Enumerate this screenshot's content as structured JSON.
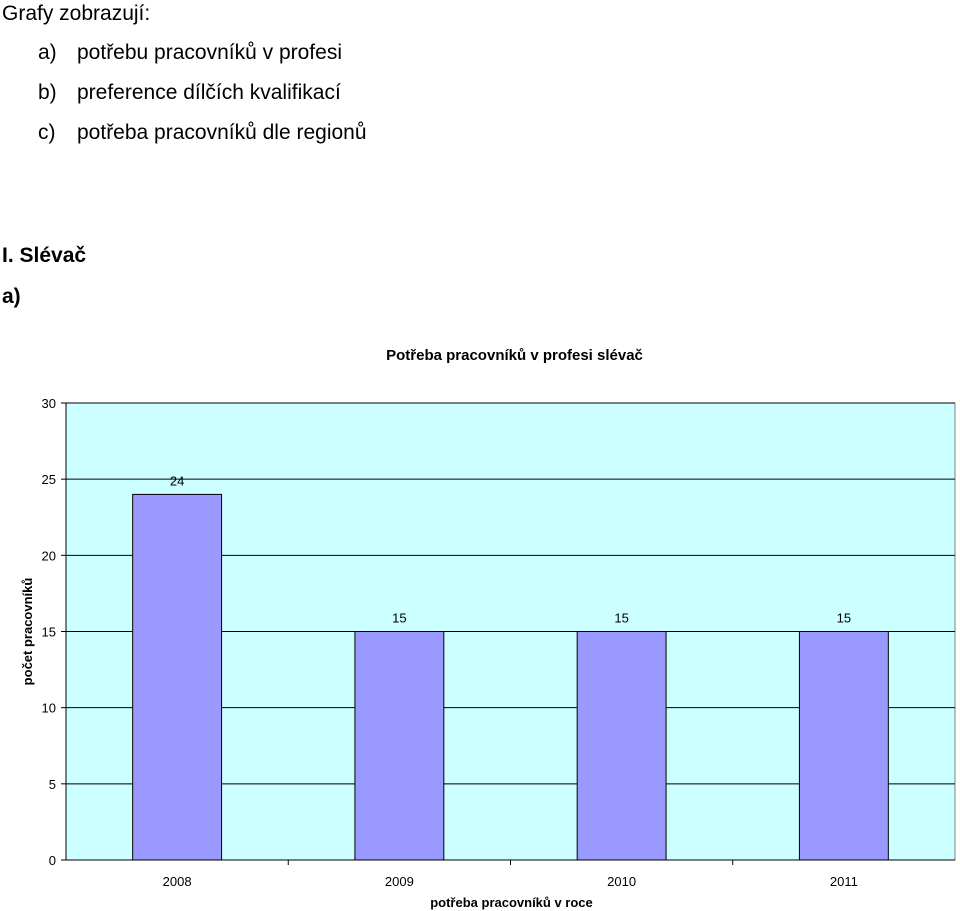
{
  "intro": {
    "title": "Grafy zobrazují:",
    "items": [
      {
        "letter": "a)",
        "text": "potřebu pracovníků v profesi"
      },
      {
        "letter": "b)",
        "text": "preference dílčích kvalifikací"
      },
      {
        "letter": "c)",
        "text": "potřeba pracovníků dle regionů"
      }
    ]
  },
  "section": {
    "heading": "I. Slévač",
    "subheading": "a)"
  },
  "chart_data": {
    "type": "bar",
    "title": "Potřeba pracovníků v profesi slévač",
    "xlabel": "potřeba pracovníků v roce",
    "ylabel": "počet pracovníků",
    "categories": [
      "2008",
      "2009",
      "2010",
      "2011"
    ],
    "series": [
      {
        "values": [
          24,
          15,
          15,
          15
        ]
      }
    ],
    "ylim": [
      0,
      30
    ],
    "yticks": [
      0,
      5,
      10,
      15,
      20,
      25,
      30
    ],
    "grid": true,
    "legend": "none",
    "data_labels": true,
    "colors": {
      "plot_background": "#ccffff",
      "bar_fill": "#9999ff",
      "grid": "#000000"
    }
  }
}
